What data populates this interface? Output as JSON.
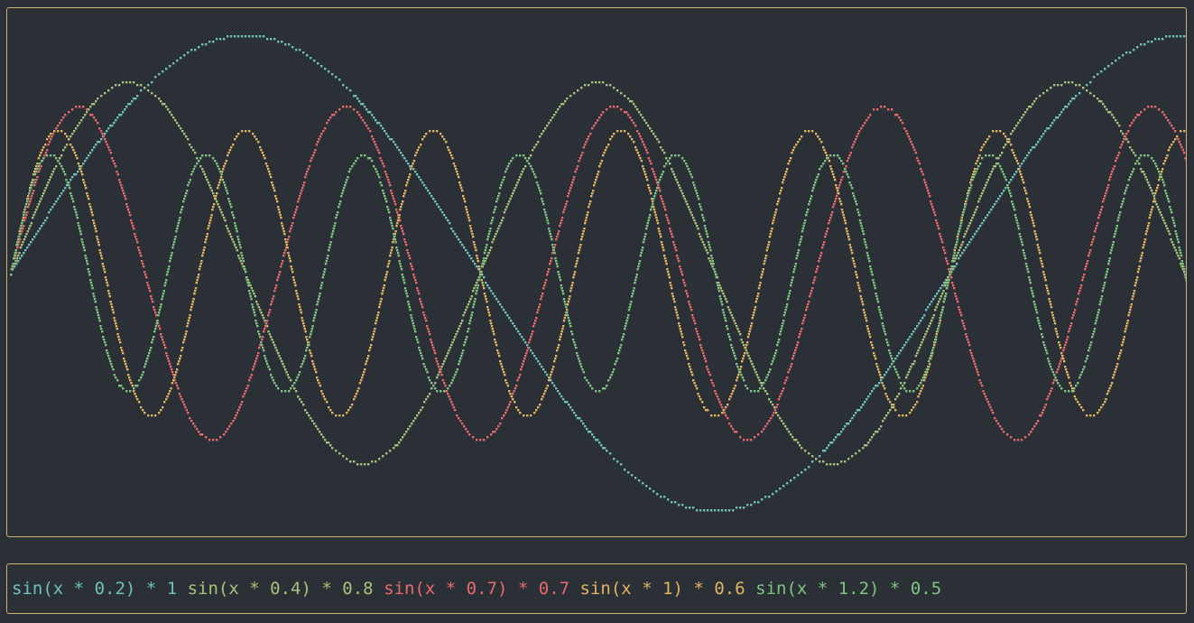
{
  "chart_data": {
    "type": "line",
    "x": {
      "range": [
        0,
        39.25
      ]
    },
    "ylim": [
      -1.05,
      1.05
    ],
    "grid": false,
    "legend_position": "bottom",
    "series": [
      {
        "name": "sin(x * 0.2) * 1",
        "parts": [
          "sin(x",
          "*",
          "0.2)",
          "*",
          "1"
        ],
        "freq": 0.2,
        "amp": 1.0,
        "color": "#6fc1bd"
      },
      {
        "name": "sin(x * 0.4) * 0.8",
        "parts": [
          "sin(x",
          "*",
          "0.4)",
          "*",
          "0.8"
        ],
        "freq": 0.4,
        "amp": 0.8,
        "color": "#a9c27b"
      },
      {
        "name": "sin(x * 0.7) * 0.7",
        "parts": [
          "sin(x",
          "*",
          "0.7)",
          "*",
          "0.7"
        ],
        "freq": 0.7,
        "amp": 0.7,
        "color": "#e8696c"
      },
      {
        "name": "sin(x * 1) * 0.6",
        "parts": [
          "sin(x",
          "*",
          "1)",
          "*",
          "0.6"
        ],
        "freq": 1.0,
        "amp": 0.6,
        "color": "#e3b461"
      },
      {
        "name": "sin(x * 1.2) * 0.5",
        "parts": [
          "sin(x",
          "*",
          "1.2)",
          "*",
          "0.5"
        ],
        "freq": 1.2,
        "amp": 0.5,
        "color": "#7fc482"
      }
    ]
  }
}
